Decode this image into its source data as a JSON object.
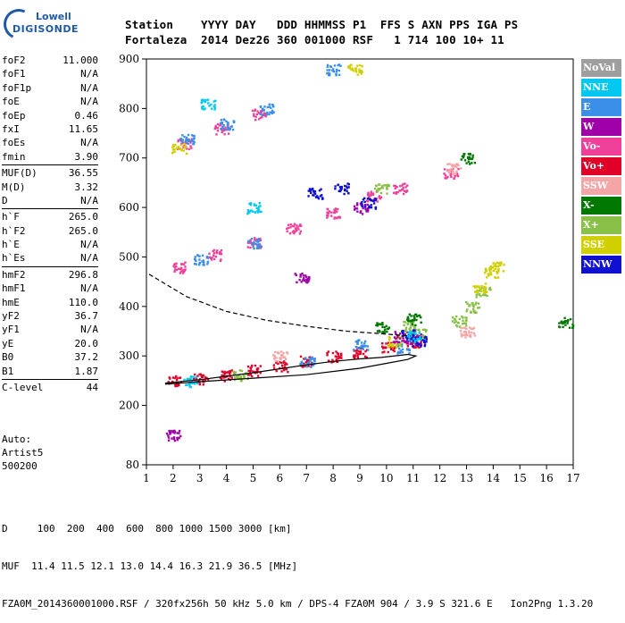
{
  "logo": {
    "line1": "Lowell",
    "line2": "DIGISONDE"
  },
  "header": {
    "row1": "Station    YYYY DAY   DDD HHMMSS P1  FFS S AXN PPS IGA PS",
    "row2": "Fortaleza  2014 Dez26 360 001000 RSF   1 714 100 10+ 11"
  },
  "params": {
    "groups": [
      [
        [
          "foF2",
          "11.000"
        ],
        [
          "foF1",
          "N/A"
        ],
        [
          "foF1p",
          "N/A"
        ],
        [
          "foE",
          "N/A"
        ],
        [
          "foEp",
          "0.46"
        ],
        [
          "fxI",
          "11.65"
        ],
        [
          "foEs",
          "N/A"
        ],
        [
          "fmin",
          "3.90"
        ]
      ],
      [
        [
          "MUF(D)",
          "36.55"
        ],
        [
          "M(D)",
          "3.32"
        ],
        [
          "D",
          "N/A"
        ]
      ],
      [
        [
          "h`F",
          "265.0"
        ],
        [
          "h`F2",
          "265.0"
        ],
        [
          "h`E",
          "N/A"
        ],
        [
          "h`Es",
          "N/A"
        ]
      ],
      [
        [
          "hmF2",
          "296.8"
        ],
        [
          "hmF1",
          "N/A"
        ],
        [
          "hmE",
          "110.0"
        ],
        [
          "yF2",
          "36.7"
        ],
        [
          "yF1",
          "N/A"
        ],
        [
          "yE",
          "20.0"
        ],
        [
          "B0",
          "37.2"
        ],
        [
          "B1",
          "1.87"
        ]
      ],
      [
        [
          "C-level",
          "44"
        ]
      ]
    ]
  },
  "auto": {
    "line1": "Auto:",
    "line2": "Artist5",
    "line3": "500200"
  },
  "legend": [
    {
      "label": "NoVal",
      "color": "#9e9e9e"
    },
    {
      "label": "NNE",
      "color": "#00c8f0"
    },
    {
      "label": "E",
      "color": "#3c8fe8"
    },
    {
      "label": "W",
      "color": "#a000a8"
    },
    {
      "label": "Vo-",
      "color": "#f0409a"
    },
    {
      "label": "Vo+",
      "color": "#e00028"
    },
    {
      "label": "SSW",
      "color": "#f4a6a6"
    },
    {
      "label": "X-",
      "color": "#007800"
    },
    {
      "label": "X+",
      "color": "#88c048"
    },
    {
      "label": "SSE",
      "color": "#d0d000"
    },
    {
      "label": "NNW",
      "color": "#1010d0"
    }
  ],
  "footer": {
    "row1": "D     100  200  400  600  800 1000 1500 3000 [km]",
    "row2": "MUF  11.4 11.5 12.1 13.0 14.4 16.3 21.9 36.5 [MHz]",
    "row3": "FZA0M_2014360001000.RSF / 320fx256h 50 kHz 5.0 km / DPS-4 FZA0M 904 / 3.9 S 321.6 E   Ion2Png 1.3.20"
  },
  "chart_data": {
    "type": "scatter",
    "xlim": [
      1,
      17
    ],
    "ylim": [
      80,
      900
    ],
    "xticks": [
      1,
      2,
      3,
      4,
      5,
      6,
      7,
      8,
      9,
      10,
      11,
      12,
      13,
      14,
      15,
      16,
      17
    ],
    "yticks": [
      80,
      200,
      300,
      400,
      500,
      600,
      700,
      800,
      900
    ],
    "series": [
      {
        "color": "#e00028",
        "clusters": [
          [
            2,
            250
          ],
          [
            3,
            255
          ],
          [
            4,
            262
          ],
          [
            5,
            272
          ],
          [
            6,
            280
          ],
          [
            7,
            290
          ],
          [
            8,
            300
          ],
          [
            9,
            308
          ],
          [
            10,
            320
          ],
          [
            11,
            330
          ]
        ]
      },
      {
        "color": "#f0409a",
        "clusters": [
          [
            2.2,
            480
          ],
          [
            3.5,
            505
          ],
          [
            5,
            530
          ],
          [
            6.5,
            560
          ],
          [
            8,
            590
          ],
          [
            9.5,
            625
          ],
          [
            10.5,
            640
          ],
          [
            2.4,
            730
          ],
          [
            3.8,
            760
          ],
          [
            5.2,
            790
          ],
          [
            12.4,
            670
          ]
        ]
      },
      {
        "color": "#3c8fe8",
        "clusters": [
          [
            2.5,
            740
          ],
          [
            4,
            770
          ],
          [
            5.5,
            800
          ],
          [
            8,
            880
          ],
          [
            3,
            495
          ],
          [
            5,
            530
          ],
          [
            7,
            290
          ],
          [
            9,
            325
          ],
          [
            10.6,
            318
          ]
        ]
      },
      {
        "color": "#88c048",
        "clusters": [
          [
            10.8,
            360
          ],
          [
            11.2,
            345
          ],
          [
            12.7,
            372
          ],
          [
            13.2,
            400
          ],
          [
            13.6,
            430
          ],
          [
            9.8,
            640
          ],
          [
            4.5,
            262
          ]
        ]
      },
      {
        "color": "#d0d000",
        "clusters": [
          [
            2.2,
            720
          ],
          [
            13.5,
            440
          ],
          [
            13.9,
            470
          ],
          [
            14.1,
            480
          ],
          [
            10.3,
            330
          ],
          [
            8.8,
            880
          ]
        ]
      },
      {
        "color": "#a000a8",
        "clusters": [
          [
            10.5,
            340
          ],
          [
            11,
            335
          ],
          [
            2,
            140
          ],
          [
            9,
            600
          ],
          [
            6.8,
            460
          ]
        ]
      },
      {
        "color": "#1010d0",
        "clusters": [
          [
            10.8,
            345
          ],
          [
            11.2,
            330
          ],
          [
            8.3,
            640
          ],
          [
            7.3,
            630
          ],
          [
            9.3,
            610
          ]
        ]
      },
      {
        "color": "#007800",
        "clusters": [
          [
            13,
            700
          ],
          [
            16.7,
            370
          ],
          [
            11,
            375
          ],
          [
            9.8,
            360
          ]
        ]
      },
      {
        "color": "#00c8f0",
        "clusters": [
          [
            2.6,
            250
          ],
          [
            3.3,
            810
          ],
          [
            5,
            600
          ],
          [
            11,
            340
          ]
        ]
      },
      {
        "color": "#f4a6a6",
        "clusters": [
          [
            12.5,
            680
          ],
          [
            13,
            350
          ],
          [
            6,
            300
          ]
        ]
      }
    ],
    "profile_solid": [
      [
        1.7,
        245
      ],
      [
        3,
        252
      ],
      [
        4,
        259
      ],
      [
        5,
        266
      ],
      [
        6,
        274
      ],
      [
        7,
        282
      ],
      [
        8,
        289
      ],
      [
        9,
        294
      ],
      [
        9.8,
        297
      ],
      [
        10.8,
        303
      ],
      [
        11.1,
        300
      ],
      [
        10.8,
        293
      ],
      [
        10,
        285
      ],
      [
        9,
        275
      ],
      [
        7,
        262
      ],
      [
        5,
        255
      ],
      [
        3,
        248
      ],
      [
        1.7,
        243
      ]
    ],
    "profile_dashed": [
      [
        1.1,
        465
      ],
      [
        2.5,
        420
      ],
      [
        4,
        390
      ],
      [
        5.5,
        372
      ],
      [
        7,
        360
      ],
      [
        8.5,
        350
      ],
      [
        10,
        344
      ],
      [
        10.9,
        340
      ]
    ]
  }
}
